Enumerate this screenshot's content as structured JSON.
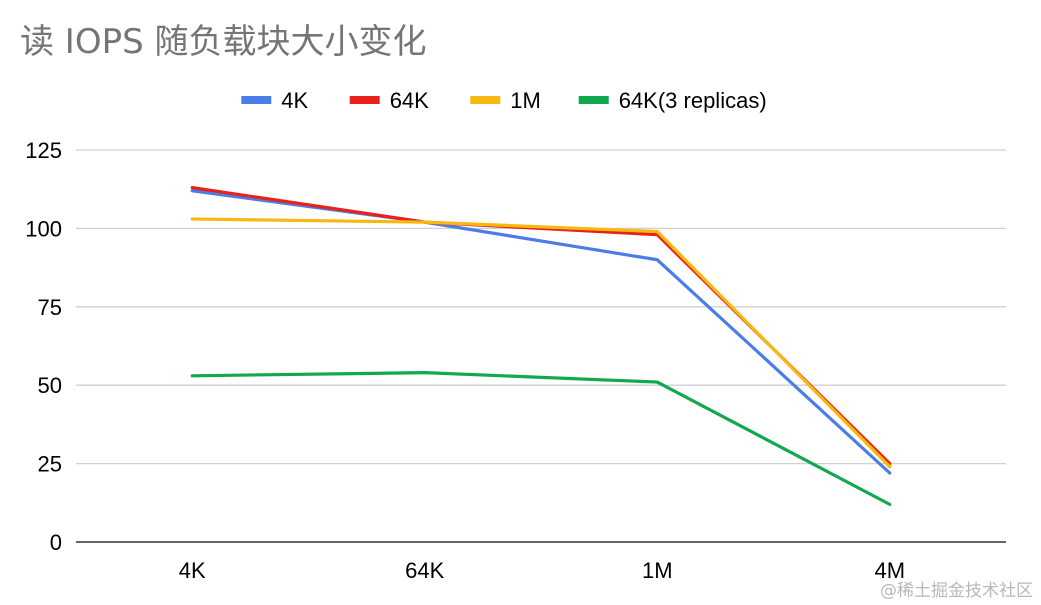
{
  "chart_data": {
    "type": "line",
    "title": "读 IOPS 随负载块大小变化",
    "xlabel": "",
    "ylabel": "",
    "categories": [
      "4K",
      "64K",
      "1M",
      "4M"
    ],
    "ylim": [
      0,
      125
    ],
    "yticks": [
      0,
      25,
      50,
      75,
      100,
      125
    ],
    "grid": true,
    "legend_position": "top",
    "series": [
      {
        "name": "4K",
        "color": "#4a7de8",
        "values": [
          112,
          102,
          90,
          22
        ]
      },
      {
        "name": "64K",
        "color": "#e8221b",
        "values": [
          113,
          102,
          98,
          25
        ]
      },
      {
        "name": "1M",
        "color": "#f7b90f",
        "values": [
          103,
          102,
          99,
          24
        ]
      },
      {
        "name": "64K(3 replicas)",
        "color": "#11a84f",
        "values": [
          53,
          54,
          51,
          12
        ]
      }
    ]
  },
  "watermark": "@稀土掘金技术社区"
}
